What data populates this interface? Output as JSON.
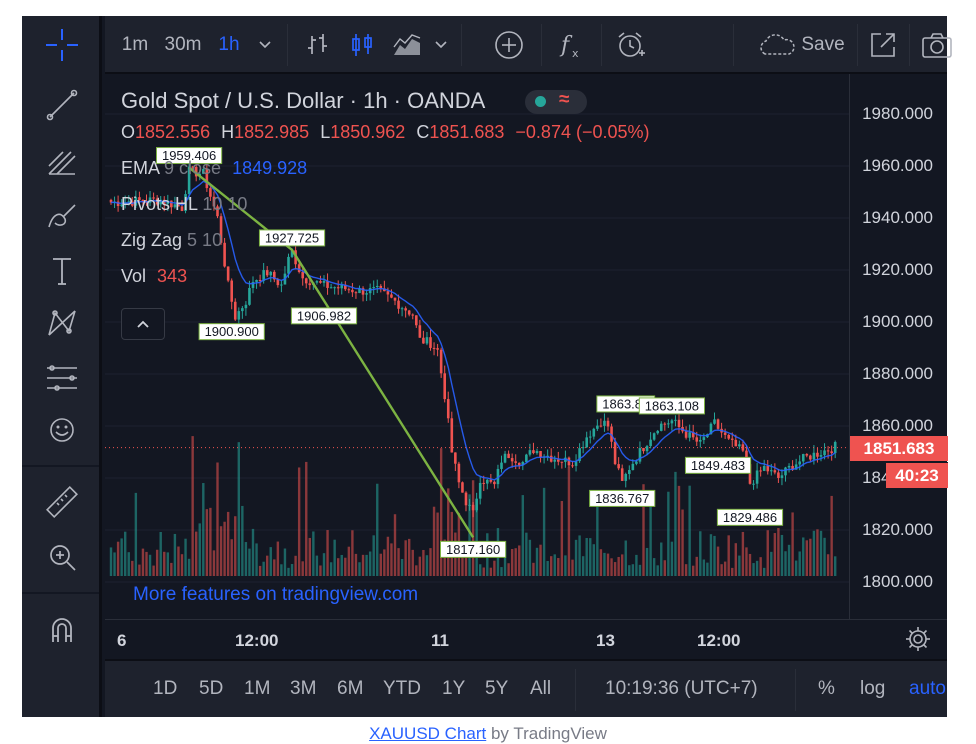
{
  "header": {
    "intervals": [
      "1m",
      "30m",
      "1h"
    ],
    "active_interval": "1h",
    "save_label": "Save"
  },
  "legend": {
    "symbol": "Gold Spot / U.S. Dollar · 1h · OANDA",
    "ohlc": {
      "o_label": "O",
      "o": "1852.556",
      "h_label": "H",
      "h": "1852.985",
      "l_label": "L",
      "l": "1850.962",
      "c_label": "C",
      "c": "1851.683",
      "change": "−0.874 (−0.05%)"
    },
    "indicators": [
      {
        "name": "EMA",
        "params": "9 close",
        "value": "1849.928"
      },
      {
        "name": "Pivots HL",
        "params": "10 10",
        "value": ""
      },
      {
        "name": "Zig Zag",
        "params": "5 10",
        "value": ""
      },
      {
        "name": "Vol",
        "params": "",
        "value": "343"
      }
    ],
    "collapse_icon": "chevron-up-icon"
  },
  "promo_text": "More features on tradingview.com",
  "price_axis": {
    "ticks": [
      "1980.000",
      "1960.000",
      "1940.000",
      "1920.000",
      "1900.000",
      "1880.000",
      "1860.000",
      "1840.000",
      "1820.000",
      "1800.000"
    ],
    "last_price": "1851.683",
    "countdown": "40:23"
  },
  "time_axis": {
    "ticks": [
      "6",
      "12:00",
      "11",
      "13",
      "12:00"
    ]
  },
  "bottom_bar": {
    "ranges": [
      "1D",
      "5D",
      "1M",
      "3M",
      "6M",
      "YTD",
      "1Y",
      "5Y",
      "All"
    ],
    "clock": "10:19:36 (UTC+7)",
    "percent": "%",
    "log": "log",
    "auto": "auto"
  },
  "caption": {
    "symbol_link": "XAUUSD Chart",
    "by": "by TradingView"
  },
  "colors": {
    "up": "#26a69a",
    "down": "#ef5350",
    "ema": "#2962ff",
    "zigzag": "#7cb342",
    "accent": "#2962ff",
    "background": "#131722"
  },
  "chart_data": {
    "type": "candlestick",
    "series_name": "XAUUSD",
    "ylim": [
      1786,
      1992
    ],
    "y_ticks": [
      1800,
      1820,
      1840,
      1860,
      1880,
      1900,
      1920,
      1940,
      1960,
      1980
    ],
    "x_ticks": [
      "6",
      "12:00",
      "11",
      "13",
      "12:00"
    ],
    "price_path": [
      [
        0,
        1946
      ],
      [
        14,
        1947
      ],
      [
        20,
        1944
      ],
      [
        22,
        1958
      ],
      [
        26,
        1957
      ],
      [
        30,
        1940
      ],
      [
        33,
        1914
      ],
      [
        35,
        1902
      ],
      [
        38,
        1908
      ],
      [
        40,
        1916
      ],
      [
        44,
        1919
      ],
      [
        48,
        1914
      ],
      [
        50,
        1924
      ],
      [
        51,
        1927
      ],
      [
        54,
        1917
      ],
      [
        60,
        1914
      ],
      [
        70,
        1912
      ],
      [
        75,
        1912
      ],
      [
        80,
        1908
      ],
      [
        85,
        1903
      ],
      [
        87,
        1893
      ],
      [
        90,
        1892
      ],
      [
        92,
        1889
      ],
      [
        94,
        1872
      ],
      [
        96,
        1850
      ],
      [
        98,
        1838
      ],
      [
        100,
        1831
      ],
      [
        102,
        1826
      ],
      [
        104,
        1840
      ],
      [
        108,
        1837
      ],
      [
        110,
        1847
      ],
      [
        112,
        1849
      ],
      [
        116,
        1846
      ],
      [
        119,
        1851
      ],
      [
        124,
        1848
      ],
      [
        130,
        1846
      ],
      [
        134,
        1856
      ],
      [
        138,
        1862
      ],
      [
        140,
        1860
      ],
      [
        142,
        1846
      ],
      [
        144,
        1838
      ],
      [
        146,
        1844
      ],
      [
        150,
        1852
      ],
      [
        154,
        1860
      ],
      [
        158,
        1862
      ],
      [
        162,
        1857
      ],
      [
        166,
        1853
      ],
      [
        170,
        1861
      ],
      [
        174,
        1854
      ],
      [
        178,
        1850
      ],
      [
        180,
        1838
      ],
      [
        184,
        1844
      ],
      [
        188,
        1840
      ],
      [
        192,
        1845
      ],
      [
        196,
        1848
      ],
      [
        200,
        1850
      ],
      [
        204,
        1852
      ]
    ],
    "ema_label": "EMA 9 close",
    "zigzag": [
      [
        22,
        1959.406
      ],
      [
        51,
        1927.725
      ],
      [
        102,
        1817.16
      ]
    ],
    "pivots": [
      {
        "bar": 22,
        "value": "1959.406",
        "pos": "above"
      },
      {
        "bar": 51,
        "value": "1927.725",
        "pos": "above"
      },
      {
        "bar": 34,
        "value": "1900.900",
        "pos": "below"
      },
      {
        "bar": 60,
        "value": "1906.982",
        "pos": "below"
      },
      {
        "bar": 102,
        "value": "1817.160",
        "pos": "below"
      },
      {
        "bar": 145,
        "value": "1863.87",
        "pos": "above"
      },
      {
        "bar": 158,
        "value": "1863.108",
        "pos": "above"
      },
      {
        "bar": 144,
        "value": "1836.767",
        "pos": "below"
      },
      {
        "bar": 171,
        "value": "1849.483",
        "pos": "below"
      },
      {
        "bar": 180,
        "value": "1829.486",
        "pos": "below"
      }
    ]
  }
}
